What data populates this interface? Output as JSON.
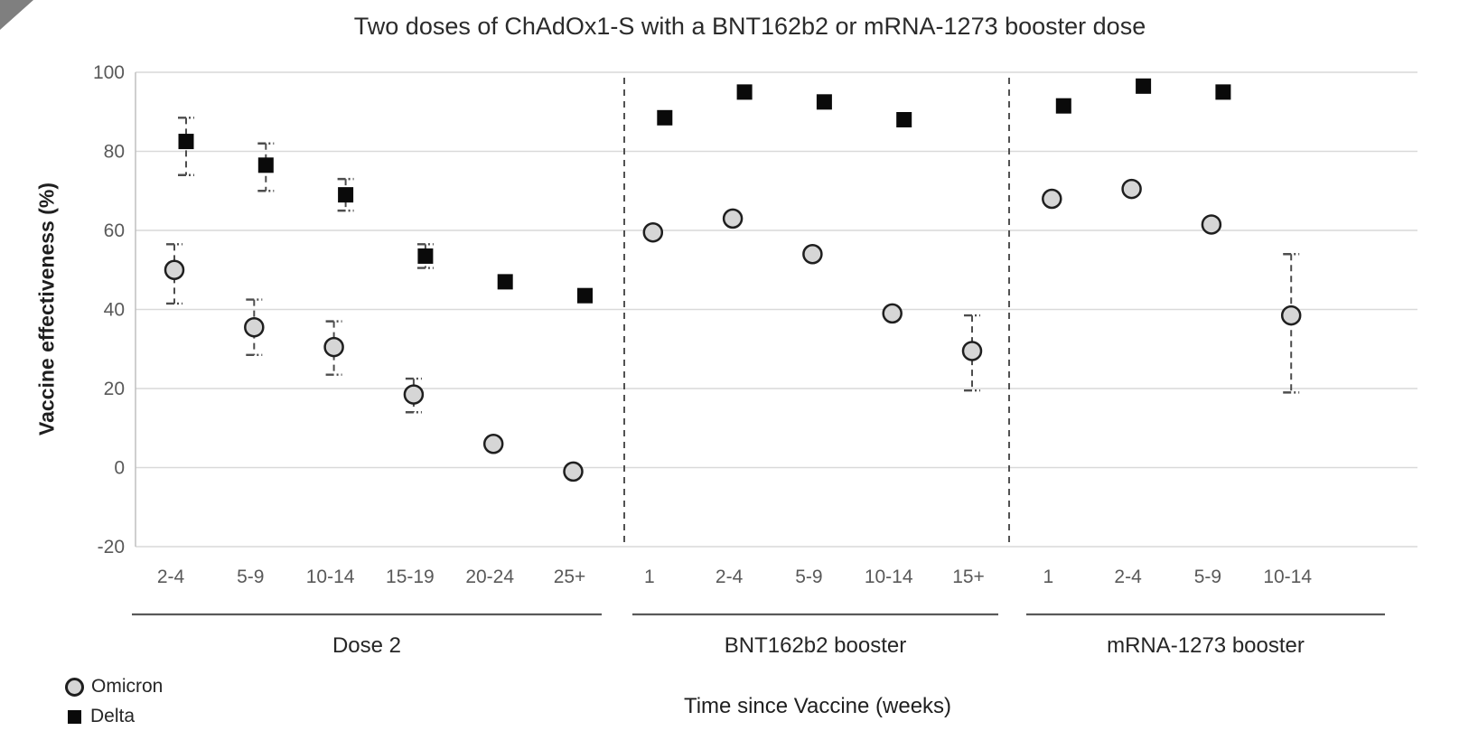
{
  "decoration": {
    "corner_triangle_color": "#7f7f7f"
  },
  "chart_data": {
    "type": "scatter",
    "title": "Two doses of ChAdOx1-S with a BNT162b2 or mRNA-1273 booster dose",
    "xlabel": "Time since Vaccine (weeks)",
    "ylabel": "Vaccine effectiveness (%)",
    "ylim": [
      -20,
      100
    ],
    "yticks": [
      100,
      80,
      60,
      40,
      20,
      0,
      -20
    ],
    "grid": true,
    "legend_position": "bottom-left",
    "series_styles": [
      {
        "name": "Omicron",
        "marker": "circle",
        "fill": "#d6d6d6",
        "stroke": "#1f1f1f"
      },
      {
        "name": "Delta",
        "marker": "square",
        "fill": "#0a0a0a",
        "stroke": "#0a0a0a"
      }
    ],
    "groups": [
      {
        "label": "Dose 2",
        "categories": [
          "2-4",
          "5-9",
          "10-14",
          "15-19",
          "20-24",
          "25+"
        ],
        "series": [
          {
            "name": "Omicron",
            "points": [
              {
                "value": 50,
                "ci_low": 41.5,
                "ci_high": 56.5
              },
              {
                "value": 35.5,
                "ci_low": 28.5,
                "ci_high": 42.5
              },
              {
                "value": 30.5,
                "ci_low": 23.5,
                "ci_high": 37
              },
              {
                "value": 18.5,
                "ci_low": 14,
                "ci_high": 22.5
              },
              {
                "value": 6,
                "ci_low": null,
                "ci_high": null
              },
              {
                "value": -1,
                "ci_low": null,
                "ci_high": null
              }
            ]
          },
          {
            "name": "Delta",
            "points": [
              {
                "value": 82.5,
                "ci_low": 74,
                "ci_high": 88.5
              },
              {
                "value": 76.5,
                "ci_low": 70,
                "ci_high": 82
              },
              {
                "value": 69,
                "ci_low": 65,
                "ci_high": 73
              },
              {
                "value": 53.5,
                "ci_low": 50.5,
                "ci_high": 56.5
              },
              {
                "value": 47,
                "ci_low": null,
                "ci_high": null
              },
              {
                "value": 43.5,
                "ci_low": null,
                "ci_high": null
              }
            ]
          }
        ]
      },
      {
        "label": "BNT162b2 booster",
        "categories": [
          "1",
          "2-4",
          "5-9",
          "10-14",
          "15+"
        ],
        "series": [
          {
            "name": "Omicron",
            "points": [
              {
                "value": 59.5,
                "ci_low": null,
                "ci_high": null
              },
              {
                "value": 63,
                "ci_low": null,
                "ci_high": null
              },
              {
                "value": 54,
                "ci_low": null,
                "ci_high": null
              },
              {
                "value": 39,
                "ci_low": null,
                "ci_high": null
              },
              {
                "value": 29.5,
                "ci_low": 19.5,
                "ci_high": 38.5
              }
            ]
          },
          {
            "name": "Delta",
            "points": [
              {
                "value": 88.5,
                "ci_low": null,
                "ci_high": null
              },
              {
                "value": 95,
                "ci_low": null,
                "ci_high": null
              },
              {
                "value": 92.5,
                "ci_low": null,
                "ci_high": null
              },
              {
                "value": 88,
                "ci_low": null,
                "ci_high": null
              }
            ]
          }
        ]
      },
      {
        "label": "mRNA-1273 booster",
        "categories": [
          "1",
          "2-4",
          "5-9",
          "10-14"
        ],
        "series": [
          {
            "name": "Omicron",
            "points": [
              {
                "value": 68,
                "ci_low": null,
                "ci_high": null
              },
              {
                "value": 70.5,
                "ci_low": null,
                "ci_high": null
              },
              {
                "value": 61.5,
                "ci_low": null,
                "ci_high": null
              },
              {
                "value": 38.5,
                "ci_low": 19,
                "ci_high": 54
              }
            ]
          },
          {
            "name": "Delta",
            "points": [
              {
                "value": 91.5,
                "ci_low": null,
                "ci_high": null
              },
              {
                "value": 96.5,
                "ci_low": null,
                "ci_high": null
              },
              {
                "value": 95,
                "ci_low": null,
                "ci_high": null
              }
            ]
          }
        ]
      }
    ]
  }
}
